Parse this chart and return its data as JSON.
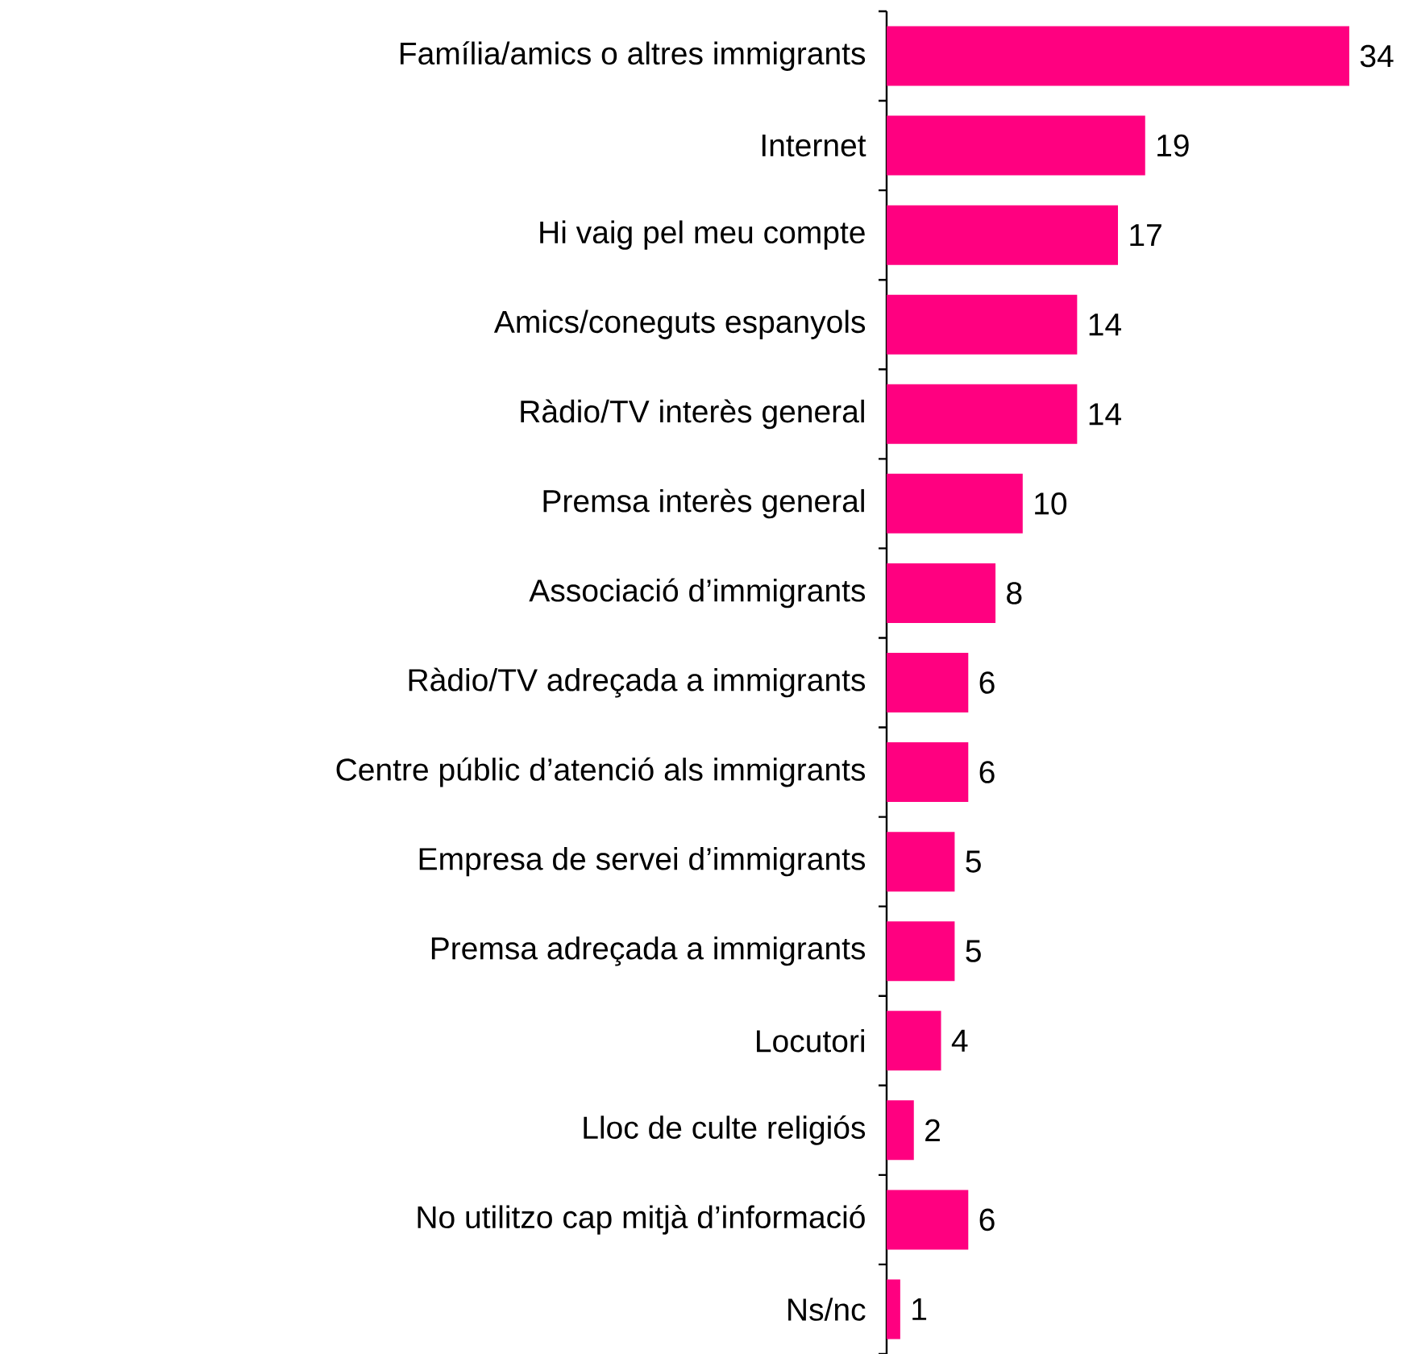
{
  "chart_data": {
    "type": "bar",
    "orientation": "horizontal",
    "categories": [
      "Família/amics o altres immigrants",
      "Internet",
      "Hi vaig pel meu compte",
      "Amics/coneguts espanyols",
      "Ràdio/TV interès general",
      "Premsa interès general",
      "Associació d’immigrants",
      "Ràdio/TV adreçada a immigrants",
      "Centre públic d’atenció als immigrants",
      "Empresa de servei d’immigrants",
      "Premsa adreçada a immigrants",
      "Locutori",
      "Lloc de culte religiós",
      "No utilitzo cap mitjà d’informació",
      "Ns/nc"
    ],
    "values": [
      34,
      19,
      17,
      14,
      14,
      10,
      8,
      6,
      6,
      5,
      5,
      4,
      2,
      6,
      1
    ],
    "color": "#ff0080",
    "data_labels": true
  }
}
